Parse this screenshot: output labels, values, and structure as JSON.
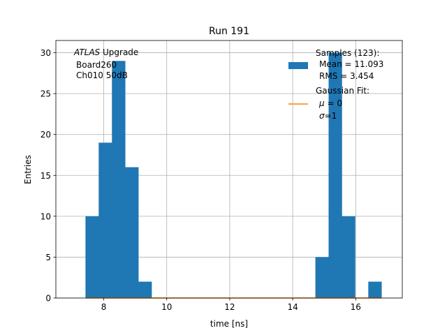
{
  "chart_data": {
    "type": "bar",
    "title": "Run 191",
    "xlabel": "time [ns]",
    "ylabel": "Entries",
    "xlim": [
      6.48,
      17.48
    ],
    "ylim": [
      0,
      31.5
    ],
    "xticks": [
      8,
      10,
      12,
      14,
      16
    ],
    "yticks": [
      0,
      5,
      10,
      15,
      20,
      25,
      30
    ],
    "grid": true,
    "bin_width": 0.42,
    "bins": [
      {
        "x0": 7.42,
        "x1": 7.84,
        "count": 10
      },
      {
        "x0": 7.84,
        "x1": 8.26,
        "count": 19
      },
      {
        "x0": 8.26,
        "x1": 8.68,
        "count": 29
      },
      {
        "x0": 8.68,
        "x1": 9.1,
        "count": 16
      },
      {
        "x0": 9.1,
        "x1": 9.52,
        "count": 2
      },
      {
        "x0": 14.72,
        "x1": 15.14,
        "count": 5
      },
      {
        "x0": 15.14,
        "x1": 15.56,
        "count": 30
      },
      {
        "x0": 15.56,
        "x1": 15.98,
        "count": 10
      },
      {
        "x0": 16.4,
        "x1": 16.82,
        "count": 2
      }
    ],
    "fit_line": {
      "x": [
        7.42,
        16.82
      ],
      "y": [
        0,
        0
      ]
    },
    "colors": {
      "histogram": "#1f77b4",
      "fit": "#ff7f0e",
      "grid": "#b0b0b0"
    },
    "legend_placement": "top-right",
    "legend": {
      "samples_line1": "Samples (123):",
      "samples_line2": "Mean = 11.093",
      "samples_line3": "RMS = 3.454",
      "fit_line1": "Gaussian Fit:",
      "fit_mu_symbol": "μ",
      "fit_mu_value": " = 0",
      "fit_sigma_symbol": "σ",
      "fit_sigma_value": "=1"
    },
    "annotation": {
      "line1_italic": "ATLAS",
      "line1_rest": " Upgrade",
      "line2": "Board260",
      "line3": "Ch010 50dB"
    }
  }
}
